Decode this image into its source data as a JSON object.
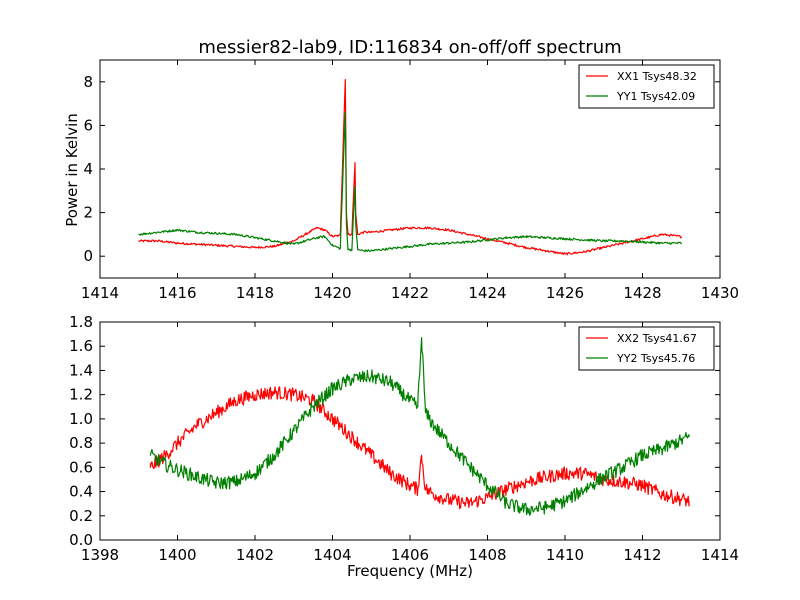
{
  "chart_data": [
    {
      "type": "line",
      "title": "messier82-lab9, ID:116834 on-off/off spectrum",
      "xlabel": "",
      "ylabel": "Power in Kelvin",
      "xlim": [
        1414,
        1430
      ],
      "ylim": [
        -1,
        9
      ],
      "xticks": [
        1414,
        1416,
        1418,
        1420,
        1422,
        1424,
        1426,
        1428,
        1430
      ],
      "yticks": [
        0,
        2,
        4,
        6,
        8
      ],
      "grid": false,
      "legend_position": "top-right",
      "series": [
        {
          "name": "XX1 Tsys48.32",
          "color": "#ff0000",
          "x": [
            1415.0,
            1415.5,
            1416.0,
            1416.5,
            1417.0,
            1417.5,
            1418.0,
            1418.5,
            1419.0,
            1419.3,
            1419.6,
            1419.8,
            1420.0,
            1420.2,
            1420.33,
            1420.36,
            1420.4,
            1420.5,
            1420.58,
            1420.6,
            1420.65,
            1420.8,
            1421.0,
            1421.5,
            1422.0,
            1422.5,
            1423.0,
            1423.5,
            1424.0,
            1424.5,
            1425.0,
            1425.5,
            1426.0,
            1426.5,
            1427.0,
            1427.5,
            1428.0,
            1428.5,
            1429.0
          ],
          "y": [
            0.7,
            0.7,
            0.6,
            0.55,
            0.5,
            0.45,
            0.4,
            0.45,
            0.7,
            1.0,
            1.3,
            1.2,
            0.9,
            0.95,
            8.1,
            2.0,
            1.0,
            1.0,
            4.3,
            2.0,
            1.0,
            1.1,
            1.1,
            1.2,
            1.3,
            1.3,
            1.2,
            1.0,
            0.8,
            0.6,
            0.4,
            0.25,
            0.1,
            0.2,
            0.4,
            0.6,
            0.8,
            1.0,
            0.9
          ]
        },
        {
          "name": "YY1 Tsys42.09",
          "color": "#008000",
          "x": [
            1415.0,
            1415.5,
            1416.0,
            1416.5,
            1417.0,
            1417.5,
            1418.0,
            1418.5,
            1419.0,
            1419.3,
            1419.6,
            1419.8,
            1420.0,
            1420.2,
            1420.33,
            1420.36,
            1420.4,
            1420.5,
            1420.58,
            1420.6,
            1420.65,
            1420.8,
            1421.0,
            1421.5,
            1422.0,
            1422.5,
            1423.0,
            1423.5,
            1424.0,
            1424.5,
            1425.0,
            1425.5,
            1426.0,
            1426.5,
            1427.0,
            1427.5,
            1428.0,
            1428.5,
            1429.0
          ],
          "y": [
            1.0,
            1.1,
            1.2,
            1.1,
            1.05,
            1.0,
            0.85,
            0.7,
            0.55,
            0.7,
            0.85,
            0.9,
            0.5,
            0.35,
            6.6,
            1.5,
            0.3,
            0.3,
            3.2,
            1.5,
            0.3,
            0.25,
            0.25,
            0.35,
            0.45,
            0.55,
            0.6,
            0.65,
            0.75,
            0.85,
            0.9,
            0.85,
            0.8,
            0.75,
            0.7,
            0.7,
            0.65,
            0.6,
            0.6
          ]
        }
      ]
    },
    {
      "type": "line",
      "title": "",
      "xlabel": "Frequency (MHz)",
      "ylabel": "",
      "xlim": [
        1398,
        1414
      ],
      "ylim": [
        0.0,
        1.8
      ],
      "xticks": [
        1398,
        1400,
        1402,
        1404,
        1406,
        1408,
        1410,
        1412,
        1414
      ],
      "yticks": [
        0.0,
        0.2,
        0.4,
        0.6,
        0.8,
        1.0,
        1.2,
        1.4,
        1.6,
        1.8
      ],
      "ytick_labels": [
        "0.0",
        "0.2",
        "0.4",
        "0.6",
        "0.8",
        "1.0",
        "1.2",
        "1.4",
        "1.6",
        "1.8"
      ],
      "grid": false,
      "legend_position": "top-right",
      "series": [
        {
          "name": "XX2 Tsys41.67",
          "color": "#ff0000",
          "x": [
            1399.3,
            1399.7,
            1400.0,
            1400.5,
            1401.0,
            1401.5,
            1402.0,
            1402.5,
            1403.0,
            1403.5,
            1404.0,
            1404.5,
            1405.0,
            1405.5,
            1406.0,
            1406.2,
            1406.3,
            1406.4,
            1406.6,
            1407.0,
            1407.5,
            1408.0,
            1408.5,
            1409.0,
            1409.5,
            1410.0,
            1410.5,
            1411.0,
            1411.5,
            1412.0,
            1412.5,
            1413.2
          ],
          "y": [
            0.6,
            0.7,
            0.8,
            0.95,
            1.05,
            1.15,
            1.2,
            1.22,
            1.2,
            1.15,
            1.0,
            0.85,
            0.7,
            0.55,
            0.45,
            0.42,
            0.7,
            0.42,
            0.38,
            0.33,
            0.3,
            0.35,
            0.42,
            0.48,
            0.52,
            0.55,
            0.55,
            0.5,
            0.48,
            0.45,
            0.38,
            0.32
          ]
        },
        {
          "name": "YY2 Tsys45.76",
          "color": "#008000",
          "x": [
            1399.3,
            1399.7,
            1400.0,
            1400.5,
            1401.0,
            1401.5,
            1402.0,
            1402.5,
            1403.0,
            1403.5,
            1404.0,
            1404.5,
            1405.0,
            1405.5,
            1406.0,
            1406.2,
            1406.3,
            1406.4,
            1406.6,
            1407.0,
            1407.5,
            1408.0,
            1408.5,
            1409.0,
            1409.5,
            1410.0,
            1410.5,
            1411.0,
            1411.5,
            1412.0,
            1412.5,
            1413.2
          ],
          "y": [
            0.7,
            0.62,
            0.58,
            0.52,
            0.47,
            0.48,
            0.55,
            0.7,
            0.9,
            1.1,
            1.25,
            1.33,
            1.35,
            1.3,
            1.15,
            1.1,
            1.67,
            1.05,
            0.95,
            0.8,
            0.62,
            0.45,
            0.3,
            0.25,
            0.27,
            0.32,
            0.42,
            0.52,
            0.6,
            0.7,
            0.75,
            0.85
          ]
        }
      ]
    }
  ]
}
